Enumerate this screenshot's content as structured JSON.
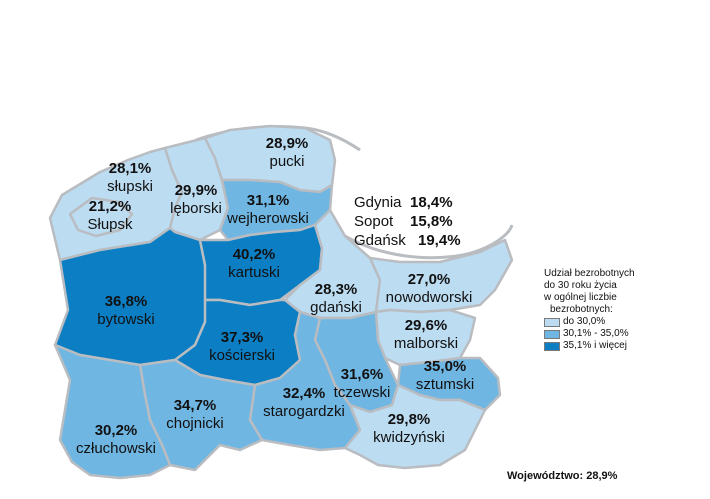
{
  "colors": {
    "low": "#bcdcf2",
    "mid": "#6fb6e3",
    "high": "#0c7ec4",
    "border": "#b9bcc0"
  },
  "legend": {
    "title_lines": [
      "Udział bezrobotnych",
      "do 30 roku życia",
      "w ogólnej liczbie",
      "bezrobotnych:"
    ],
    "items": [
      {
        "label": "do 30,0%",
        "color": "#bcdcf2"
      },
      {
        "label": "30,1% - 35,0%",
        "color": "#6fb6e3"
      },
      {
        "label": "35,1% i więcej",
        "color": "#0c7ec4"
      }
    ]
  },
  "regions": [
    {
      "name": "pucki",
      "value": "28,9%",
      "class": "low"
    },
    {
      "name": "słupski",
      "value": "28,1%",
      "class": "low"
    },
    {
      "name": "Słupsk",
      "value": "21,2%",
      "class": "low"
    },
    {
      "name": "lęborski",
      "value": "29,9%",
      "class": "low"
    },
    {
      "name": "wejherowski",
      "value": "31,1%",
      "class": "mid"
    },
    {
      "name": "kartuski",
      "value": "40,2%",
      "class": "high"
    },
    {
      "name": "bytowski",
      "value": "36,8%",
      "class": "high"
    },
    {
      "name": "kościerski",
      "value": "37,3%",
      "class": "high"
    },
    {
      "name": "gdański",
      "value": "28,3%",
      "class": "low"
    },
    {
      "name": "nowodworski",
      "value": "27,0%",
      "class": "low"
    },
    {
      "name": "malborski",
      "value": "29,6%",
      "class": "low"
    },
    {
      "name": "sztumski",
      "value": "35,0%",
      "class": "mid"
    },
    {
      "name": "tczewski",
      "value": "31,6%",
      "class": "mid"
    },
    {
      "name": "starogardzki",
      "value": "32,4%",
      "class": "mid"
    },
    {
      "name": "chojnicki",
      "value": "34,7%",
      "class": "mid"
    },
    {
      "name": "człuchowski",
      "value": "30,2%",
      "class": "mid"
    },
    {
      "name": "kwidzyński",
      "value": "29,8%",
      "class": "low"
    }
  ],
  "cities": [
    {
      "name": "Gdynia",
      "value": "18,4%"
    },
    {
      "name": "Sopot",
      "value": "15,8%"
    },
    {
      "name": "Gdańsk",
      "value": "19,4%"
    }
  ],
  "total": {
    "label": "Województwo:",
    "value": "28,9%"
  }
}
